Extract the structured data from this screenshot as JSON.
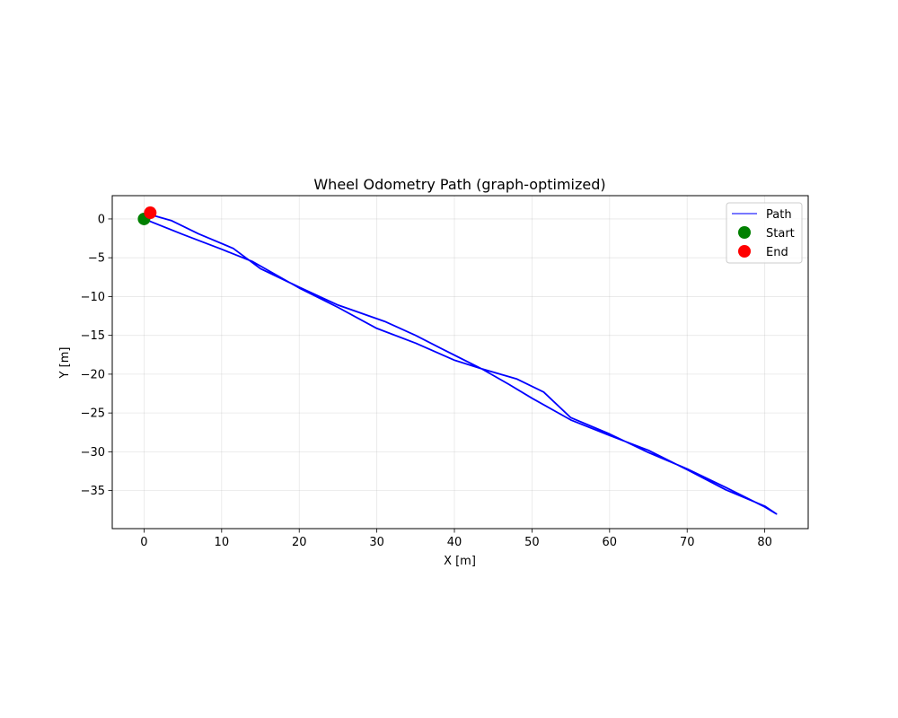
{
  "chart_data": {
    "type": "line",
    "title": "Wheel Odometry Path (graph-optimized)",
    "xlabel": "X [m]",
    "ylabel": "Y [m]",
    "xlim": [
      -4.1,
      85.6
    ],
    "ylim": [
      -39.9,
      3.0
    ],
    "xticks": [
      0,
      10,
      20,
      30,
      40,
      50,
      60,
      70,
      80
    ],
    "yticks": [
      0,
      -5,
      -10,
      -15,
      -20,
      -25,
      -30,
      -35
    ],
    "xtick_labels": [
      "0",
      "10",
      "20",
      "30",
      "40",
      "50",
      "60",
      "70",
      "80"
    ],
    "ytick_labels": [
      "0",
      "−5",
      "−10",
      "−15",
      "−20",
      "−25",
      "−30",
      "−35"
    ],
    "grid": true,
    "legend_position": "top-right",
    "series": [
      {
        "name": "Path",
        "kind": "line",
        "color": "#0000ff",
        "x": [
          0.0,
          5.0,
          10.0,
          14.0,
          20.0,
          25.0,
          30.0,
          35.0,
          40.0,
          43.5,
          47.0,
          50.0,
          55.0,
          60.0,
          65.0,
          70.0,
          75.0,
          80.0,
          81.5,
          80.0,
          75.0,
          70.0,
          65.0,
          60.0,
          55.0,
          51.5,
          48.0,
          43.5,
          38.5,
          35.0,
          31.0,
          25.0,
          20.0,
          15.0,
          11.5,
          7.0,
          3.5,
          1.0,
          0.8
        ],
        "y": [
          0.0,
          -2.0,
          -3.9,
          -5.5,
          -8.9,
          -11.4,
          -14.1,
          -16.0,
          -18.2,
          -19.3,
          -21.3,
          -23.1,
          -25.9,
          -27.9,
          -29.8,
          -32.3,
          -34.9,
          -37.0,
          -38.0,
          -37.1,
          -34.6,
          -32.2,
          -30.1,
          -27.7,
          -25.6,
          -22.3,
          -20.6,
          -19.3,
          -16.8,
          -15.0,
          -13.2,
          -11.1,
          -8.8,
          -6.4,
          -3.8,
          -1.9,
          -0.2,
          0.5,
          0.8
        ]
      },
      {
        "name": "Start",
        "kind": "marker",
        "color": "#008000",
        "x": [
          0.0
        ],
        "y": [
          0.0
        ]
      },
      {
        "name": "End",
        "kind": "marker",
        "color": "#ff0000",
        "x": [
          0.8
        ],
        "y": [
          0.8
        ]
      }
    ]
  }
}
